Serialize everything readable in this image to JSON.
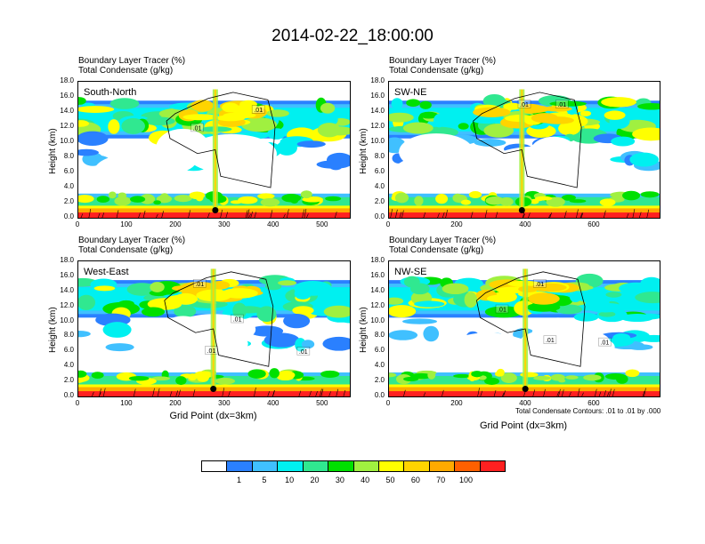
{
  "title": "2014-02-22_18:00:00",
  "x_axis_title": "Grid Point (dx=3km)",
  "y_axis_title": "Height (km)",
  "contour_note": "Total Condensate Contours: .01 to .01 by .000",
  "colorbar": {
    "colors": [
      "#ffffff",
      "#2a80ff",
      "#40c0ff",
      "#00f0f0",
      "#30e890",
      "#00e000",
      "#a0f040",
      "#ffff00",
      "#ffd400",
      "#ffaa00",
      "#ff6000",
      "#ff2020"
    ],
    "labels": [
      "1",
      "5",
      "10",
      "20",
      "30",
      "40",
      "50",
      "60",
      "70",
      "100"
    ]
  },
  "chart_data": [
    {
      "type": "heatmap",
      "region": "South-North",
      "title_line1": "Boundary Layer Tracer   (%)",
      "title_line2": "Total Condensate   (g/kg)",
      "xlim": [
        0,
        555
      ],
      "ylim": [
        0,
        18
      ],
      "xticks": [
        "0",
        "100",
        "200",
        "300",
        "400",
        "500"
      ],
      "yticks": [
        "0.0",
        "2.0",
        "4.0",
        "6.0",
        "8.0",
        "10.0",
        "12.0",
        "14.0",
        "16.0",
        "18.0"
      ],
      "contour_labels": [
        {
          "text": ".01",
          "x": 243,
          "y": 11.9
        },
        {
          "text": ".01",
          "x": 368,
          "y": 14.3
        }
      ],
      "marker": {
        "x": 280,
        "y": 1.0
      }
    },
    {
      "type": "heatmap",
      "region": "SW-NE",
      "title_line1": "Boundary Layer Tracer   (%)",
      "title_line2": "Total Condensate   (g/kg)",
      "xlim": [
        0,
        790
      ],
      "ylim": [
        0,
        18
      ],
      "xticks": [
        "0",
        "200",
        "400",
        "600"
      ],
      "yticks": [
        "0.0",
        "2.0",
        "4.0",
        "6.0",
        "8.0",
        "10.0",
        "12.0",
        "14.0",
        "16.0",
        "18.0"
      ],
      "contour_labels": [
        {
          "text": ".01",
          "x": 395,
          "y": 15.0
        },
        {
          "text": ".01",
          "x": 505,
          "y": 15.0
        }
      ],
      "marker": {
        "x": 388,
        "y": 1.0
      }
    },
    {
      "type": "heatmap",
      "region": "West-East",
      "title_line1": "Boundary Layer Tracer   (%)",
      "title_line2": "Total Condensate   (g/kg)",
      "xlim": [
        0,
        555
      ],
      "ylim": [
        0,
        18
      ],
      "xticks": [
        "0",
        "100",
        "200",
        "300",
        "400",
        "500"
      ],
      "yticks": [
        "0.0",
        "2.0",
        "4.0",
        "6.0",
        "8.0",
        "10.0",
        "12.0",
        "14.0",
        "16.0",
        "18.0"
      ],
      "contour_labels": [
        {
          "text": ".01",
          "x": 248,
          "y": 15.0
        },
        {
          "text": ".01",
          "x": 325,
          "y": 10.3
        },
        {
          "text": ".01",
          "x": 272,
          "y": 6.1
        },
        {
          "text": ".01",
          "x": 460,
          "y": 6.0
        }
      ],
      "marker": {
        "x": 276,
        "y": 1.0
      }
    },
    {
      "type": "heatmap",
      "region": "NW-SE",
      "title_line1": "Boundary Layer Tracer   (%)",
      "title_line2": "Total Condensate   (g/kg)",
      "xlim": [
        0,
        790
      ],
      "ylim": [
        0,
        18
      ],
      "xticks": [
        "0",
        "200",
        "400",
        "600"
      ],
      "yticks": [
        "0.0",
        "2.0",
        "4.0",
        "6.0",
        "8.0",
        "10.0",
        "12.0",
        "14.0",
        "16.0",
        "18.0"
      ],
      "contour_labels": [
        {
          "text": ".01",
          "x": 440,
          "y": 15.0
        },
        {
          "text": ".01",
          "x": 330,
          "y": 11.6
        },
        {
          "text": ".01",
          "x": 470,
          "y": 7.5
        },
        {
          "text": ".01",
          "x": 630,
          "y": 7.2
        }
      ],
      "marker": {
        "x": 398,
        "y": 1.0
      }
    }
  ]
}
